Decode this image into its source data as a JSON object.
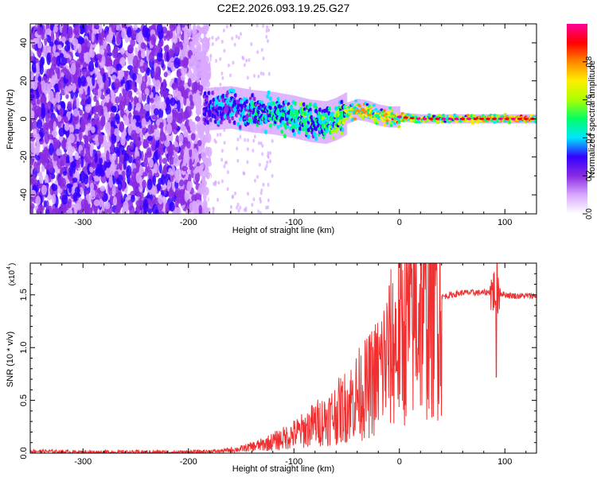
{
  "chart_data": [
    {
      "type": "heatmap",
      "title": "C2E2.2026.093.19.25.G27",
      "xlabel": "Height of straight line (km)",
      "ylabel": "Frequency (Hz)",
      "xlim": [
        -350,
        130
      ],
      "ylim": [
        -50,
        50
      ],
      "xticks": [
        -300,
        -200,
        -100,
        0,
        100
      ],
      "xtick_labels": [
        "-300",
        "-200",
        "-100",
        "0",
        "100"
      ],
      "yticks": [
        -40,
        -20,
        0,
        20,
        40
      ],
      "ytick_labels": [
        "-40",
        "-20",
        "0",
        "20",
        "40"
      ],
      "colorbar": {
        "label": "Normalized spectral amplitude",
        "range": [
          0,
          1
        ],
        "ticks": [
          0.0,
          0.2,
          0.4,
          0.6,
          0.8
        ],
        "tick_labels": [
          "0.0",
          "0.2",
          "0.4",
          "0.6",
          "0.8"
        ],
        "colors": [
          "#ffffff",
          "#d9a8ff",
          "#8a2be2",
          "#3300ff",
          "#00e5ff",
          "#00ff66",
          "#aaff00",
          "#ffee00",
          "#ff8800",
          "#ff0000",
          "#ff0099"
        ]
      },
      "signal_track": {
        "x": [
          -185,
          -160,
          -140,
          -120,
          -100,
          -85,
          -70,
          -60,
          -50,
          -40,
          -30,
          -20,
          -10,
          0,
          20,
          60,
          100,
          130
        ],
        "frequency": [
          5,
          6,
          4,
          3,
          1,
          -1,
          -2,
          0,
          3,
          5,
          4,
          2,
          1,
          1,
          0,
          0,
          0,
          0
        ],
        "amplitude": [
          0.35,
          0.4,
          0.45,
          0.5,
          0.55,
          0.55,
          0.55,
          0.6,
          0.65,
          0.8,
          0.75,
          0.7,
          0.8,
          0.85,
          0.7,
          0.72,
          0.8,
          0.85
        ]
      },
      "noise_region": {
        "x_from": -350,
        "x_to": -180,
        "frequency_span": [
          -50,
          50
        ]
      }
    },
    {
      "type": "line",
      "xlabel": "Height of straight line (km)",
      "ylabel": "SNR (10 * v/v)",
      "y_scale_label": "(x10",
      "y_scale_exponent": "4",
      "xlim": [
        -350,
        130
      ],
      "ylim": [
        0,
        1.8
      ],
      "xticks": [
        -300,
        -200,
        -100,
        0,
        100
      ],
      "xtick_labels": [
        "-300",
        "-200",
        "-100",
        "0",
        "100"
      ],
      "yticks": [
        0.0,
        0.5,
        1.0,
        1.5
      ],
      "ytick_labels": [
        "0.0",
        "0.5",
        "1.0",
        "1.5"
      ],
      "line_color": "#f03030",
      "series": [
        {
          "name": "SNR",
          "x": [
            -350,
            -300,
            -250,
            -200,
            -170,
            -150,
            -130,
            -110,
            -100,
            -90,
            -80,
            -70,
            -60,
            -50,
            -40,
            -30,
            -20,
            -10,
            0,
            10,
            20,
            30,
            40,
            50,
            60,
            70,
            80,
            88,
            92,
            95,
            100,
            110,
            120,
            130
          ],
          "values": [
            0.02,
            0.01,
            0.01,
            0.01,
            0.02,
            0.04,
            0.08,
            0.14,
            0.18,
            0.22,
            0.28,
            0.32,
            0.38,
            0.45,
            0.55,
            0.62,
            0.75,
            0.95,
            1.1,
            1.25,
            1.38,
            1.45,
            1.48,
            1.5,
            1.52,
            1.52,
            1.52,
            1.53,
            1.55,
            1.52,
            1.5,
            1.49,
            1.49,
            1.49
          ]
        }
      ]
    }
  ]
}
